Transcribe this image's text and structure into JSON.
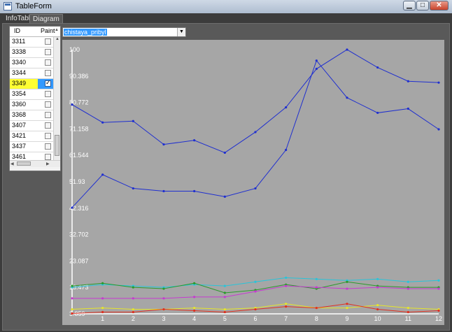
{
  "window": {
    "title": "TableForm",
    "buttons": {
      "minimize": "▁",
      "maximize": "□",
      "close": "✕"
    }
  },
  "tabs": [
    {
      "label": "InfoTable"
    },
    {
      "label": "Diagram"
    }
  ],
  "grid": {
    "headers": {
      "id": "ID",
      "paint": "Paint"
    },
    "rows": [
      {
        "id": "3311",
        "paint": false
      },
      {
        "id": "3338",
        "paint": false
      },
      {
        "id": "3340",
        "paint": false
      },
      {
        "id": "3344",
        "paint": false
      },
      {
        "id": "3349",
        "paint": true,
        "selected": true
      },
      {
        "id": "3354",
        "paint": false
      },
      {
        "id": "3360",
        "paint": false
      },
      {
        "id": "3368",
        "paint": false
      },
      {
        "id": "3407",
        "paint": false
      },
      {
        "id": "3421",
        "paint": false
      },
      {
        "id": "3437",
        "paint": false
      },
      {
        "id": "3461",
        "paint": false
      }
    ]
  },
  "combo": {
    "value": "chistaya_pribyl"
  },
  "chart_data": {
    "type": "line",
    "background": "#a6a6a6",
    "grid": false,
    "x": [
      0,
      1,
      2,
      3,
      4,
      5,
      6,
      7,
      8,
      9,
      10,
      11,
      12
    ],
    "x_ticks": [
      "1",
      "2",
      "3",
      "4",
      "5",
      "6",
      "7",
      "8",
      "9",
      "10",
      "11",
      "12"
    ],
    "y_ticks": [
      "3.859",
      "13.473",
      "23.087",
      "32.702",
      "42.316",
      "51.93",
      "61.544",
      "71.158",
      "80.772",
      "90.386",
      "100"
    ],
    "ylim": [
      3.859,
      100
    ],
    "series": [
      {
        "color": "#1f2fd0",
        "values": [
          80,
          73.5,
          74,
          65.5,
          67,
          62.5,
          70,
          79,
          93,
          100,
          93.5,
          88.5,
          88
        ]
      },
      {
        "color": "#1f2fd0",
        "values": [
          42.5,
          54.5,
          49.5,
          48.5,
          48.5,
          46.5,
          49.5,
          63.5,
          96,
          82.5,
          77,
          78.5,
          71
        ]
      },
      {
        "color": "#29c4d9",
        "values": [
          13.5,
          14.5,
          14,
          13.5,
          14.5,
          14,
          15.5,
          17,
          16.5,
          16,
          16.5,
          15.5,
          16
        ]
      },
      {
        "color": "#2a9a2a",
        "values": [
          14,
          15,
          13.5,
          13,
          15,
          11.5,
          12.5,
          14.5,
          13,
          15.5,
          14,
          13.5,
          13.5
        ]
      },
      {
        "color": "#c63ad0",
        "values": [
          9.5,
          9.5,
          9.5,
          9.5,
          10,
          10,
          12,
          14,
          13.5,
          13,
          13.5,
          13,
          13
        ]
      },
      {
        "color": "#e6e62a",
        "values": [
          5.5,
          6,
          5.5,
          5.5,
          6,
          5.5,
          6,
          7.5,
          6,
          6,
          7,
          6,
          5.5
        ]
      },
      {
        "color": "#e03020",
        "values": [
          4,
          4.5,
          4.5,
          5.5,
          5,
          4.5,
          5.5,
          6.5,
          6,
          7.5,
          5.5,
          4.5,
          5
        ]
      }
    ]
  }
}
